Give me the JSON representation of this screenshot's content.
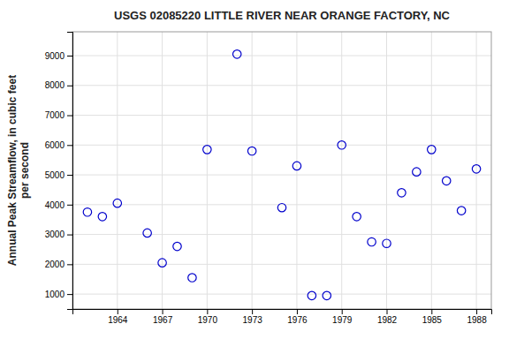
{
  "chart_data": {
    "type": "scatter",
    "title": "USGS 02085220 LITTLE RIVER NEAR ORANGE FACTORY, NC",
    "ylabel": "Annual Peak Streamflow, in cubic feet\nper second",
    "x": [
      1962,
      1963,
      1964,
      1966,
      1967,
      1968,
      1969,
      1970,
      1972,
      1973,
      1975,
      1976,
      1977,
      1978,
      1979,
      1980,
      1981,
      1982,
      1983,
      1984,
      1985,
      1986,
      1987,
      1988
    ],
    "values": [
      3750,
      3600,
      4050,
      3050,
      2050,
      2600,
      1550,
      5850,
      9050,
      5800,
      3900,
      5300,
      950,
      950,
      6000,
      3600,
      2750,
      2700,
      4400,
      5100,
      5850,
      4800,
      3800,
      5200
    ],
    "xlim": [
      1961,
      1989
    ],
    "ylim": [
      500,
      9800
    ],
    "xticks": [
      1964,
      1967,
      1970,
      1973,
      1976,
      1979,
      1982,
      1985,
      1988
    ],
    "yticks": [
      1000,
      2000,
      3000,
      4000,
      5000,
      6000,
      7000,
      8000,
      9000
    ],
    "color": "#0000cc",
    "marker": "circle",
    "grid": true
  }
}
